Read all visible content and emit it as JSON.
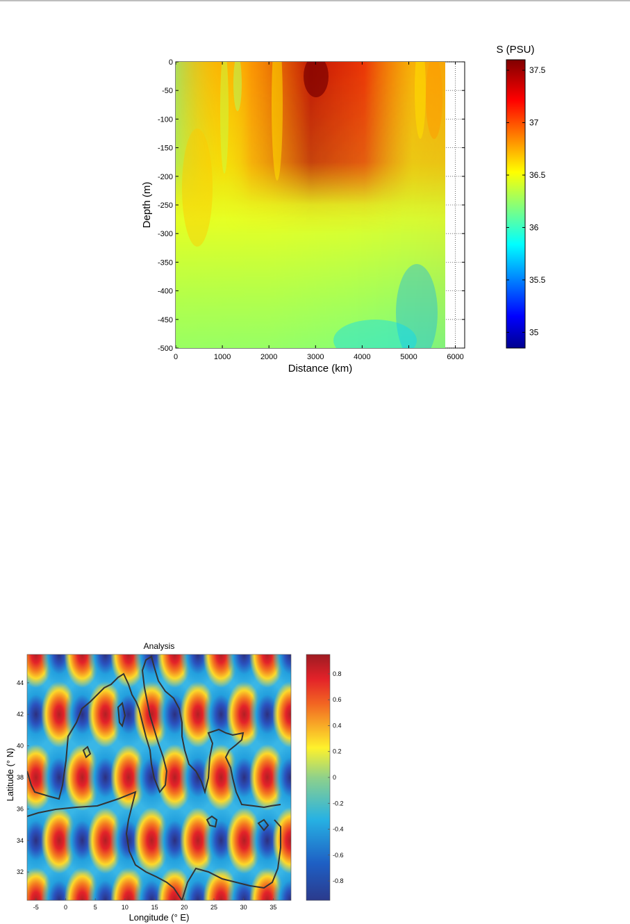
{
  "chart_data": [
    {
      "type": "heatmap",
      "title": "",
      "xlabel": "Distance (km)",
      "ylabel": "Depth (m)",
      "xlim": [
        0,
        6200
      ],
      "ylim": [
        -500,
        0
      ],
      "xticks": [
        0,
        1000,
        2000,
        3000,
        4000,
        5000,
        6000
      ],
      "yticks": [
        0,
        -50,
        -100,
        -150,
        -200,
        -250,
        -300,
        -350,
        -400,
        -450,
        -500
      ],
      "data_extent_x": [
        0,
        5800
      ],
      "colorbar": {
        "label": "S (PSU)",
        "range": [
          34.85,
          37.6
        ],
        "ticks": [
          35,
          35.5,
          36,
          36.5,
          37,
          37.5
        ]
      },
      "grid": "vertical dotted at x=6000",
      "colormap": "jet"
    },
    {
      "type": "heatmap",
      "title": "Analysis",
      "xlabel": "Longitude (° E)",
      "ylabel": "Latitude (° N)",
      "xlim": [
        -6.5,
        38
      ],
      "ylim": [
        30.2,
        45.8
      ],
      "xticks": [
        -5,
        0,
        5,
        10,
        15,
        20,
        25,
        30,
        35
      ],
      "yticks": [
        32,
        34,
        36,
        38,
        40,
        42,
        44
      ],
      "colorbar": {
        "label": "",
        "range": [
          -0.95,
          0.95
        ],
        "ticks": [
          -0.8,
          -0.6,
          -0.4,
          -0.2,
          0,
          0.2,
          0.4,
          0.6,
          0.8
        ]
      },
      "pattern": "checkerboard of alternating positive and negative cells, centers near latitudes 34, 38, 42 and every ~3.9 degrees longitude",
      "overlay": "coastline outline in dark gray",
      "colormap": "jet"
    }
  ]
}
